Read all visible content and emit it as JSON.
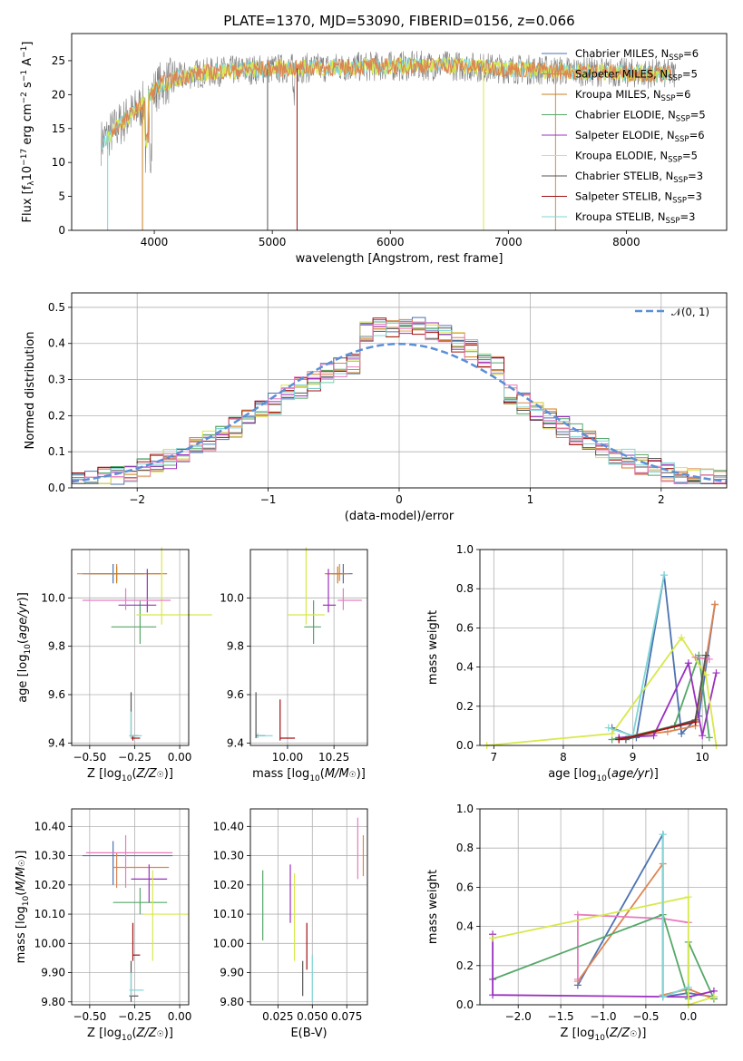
{
  "figure": {
    "title": "PLATE=1370, MJD=53090, FIBERID=0156, z=0.066"
  },
  "colors": {
    "blue": "#4c72b0",
    "orange": "#dd8452",
    "darkorange": "#cc7f20",
    "green": "#55a868",
    "purple": "#9b30c0",
    "yellow": "#d8e84a",
    "darkgray": "#555555",
    "darkred": "#a01010",
    "cyan": "#7fd6d6",
    "pink": "#e87cc0",
    "dashed": "#5b8fd6",
    "grid": "#b0b0b0"
  },
  "legend": {
    "models": [
      {
        "label": "Chabrier MILES, N",
        "sub": "SSP",
        "suffix": "=6",
        "color": "#4c72b0"
      },
      {
        "label": "Salpeter MILES, N",
        "sub": "SSP",
        "suffix": "=5",
        "color": "#dd8452"
      },
      {
        "label": "Kroupa MILES, N",
        "sub": "SSP",
        "suffix": "=6",
        "color": "#cc7f20"
      },
      {
        "label": "Chabrier ELODIE, N",
        "sub": "SSP",
        "suffix": "=5",
        "color": "#55a868"
      },
      {
        "label": "Salpeter ELODIE, N",
        "sub": "SSP",
        "suffix": "=6",
        "color": "#9b30c0"
      },
      {
        "label": "Kroupa ELODIE, N",
        "sub": "SSP",
        "suffix": "=5",
        "color": "#d8e84a"
      },
      {
        "label": "Chabrier STELIB, N",
        "sub": "SSP",
        "suffix": "=3",
        "color": "#555555"
      },
      {
        "label": "Salpeter STELIB, N",
        "sub": "SSP",
        "suffix": "=3",
        "color": "#a01010"
      },
      {
        "label": "Kroupa STELIB, N",
        "sub": "SSP",
        "suffix": "=3",
        "color": "#7fd6d6"
      }
    ],
    "normal_label": "𝒩(0, 1)"
  },
  "chart_data": [
    {
      "id": "spectrum",
      "type": "line",
      "xlabel": "wavelength [Angstrom, rest frame]",
      "ylabel": "Flux [f_λ10^-17 erg cm^-2 s^-1 A^-1]",
      "xlim": [
        3300,
        8850
      ],
      "ylim": [
        0,
        29
      ],
      "xticks": [
        4000,
        5000,
        6000,
        7000,
        8000
      ],
      "yticks": [
        0,
        5,
        10,
        15,
        20,
        25
      ],
      "continuum": {
        "x": [
          3550,
          3700,
          3900,
          4050,
          4300,
          4600,
          5000,
          5500,
          6000,
          6500,
          7000,
          7500,
          8000,
          8400
        ],
        "y": [
          13,
          15.5,
          18.5,
          21.5,
          23,
          23.5,
          23.8,
          24,
          24.2,
          24.3,
          23.8,
          23.5,
          23.2,
          23.0
        ]
      },
      "grid": false
    },
    {
      "id": "residuals",
      "type": "histogram",
      "xlabel": "(data-model)/error",
      "ylabel": "Normed distribution",
      "xlim": [
        -2.5,
        2.5
      ],
      "ylim": [
        0,
        0.54
      ],
      "xticks": [
        -2,
        -1,
        0,
        1,
        2
      ],
      "yticks": [
        0.0,
        0.1,
        0.2,
        0.3,
        0.4,
        0.5
      ],
      "bin_width": 0.1,
      "series_base": [
        0.02,
        0.025,
        0.03,
        0.035,
        0.04,
        0.05,
        0.055,
        0.065,
        0.075,
        0.085,
        0.1,
        0.11,
        0.125,
        0.14,
        0.16,
        0.18,
        0.2,
        0.21,
        0.23,
        0.26,
        0.3,
        0.31,
        0.33,
        0.35,
        0.37,
        0.38,
        0.39,
        0.4,
        0.41,
        0.43,
        0.44,
        0.45,
        0.46,
        0.47,
        0.46,
        0.44,
        0.42,
        0.4,
        0.36,
        0.33,
        0.3,
        0.27,
        0.22,
        0.2,
        0.16,
        0.14,
        0.12,
        0.1,
        0.09,
        0.08
      ],
      "grid": true
    },
    {
      "id": "age_vs_Z",
      "type": "errorbar",
      "xlabel": "Z [log10(Z/Z☉)]",
      "ylabel": "age  [log10(age/yr)]",
      "xlim": [
        -0.6,
        0.05
      ],
      "ylim": [
        9.39,
        10.2
      ],
      "xticks": [
        -0.5,
        -0.25,
        0.0
      ],
      "xtick_labels": [
        "−0.50",
        "−0.25",
        "0.00"
      ],
      "yticks": [
        9.4,
        9.6,
        9.8,
        10.0
      ],
      "points": [
        {
          "x": -0.37,
          "xerr": [
            0.17,
            0.17
          ],
          "y": 10.1,
          "yerr": [
            0.04,
            0.04
          ],
          "color": "#4c72b0"
        },
        {
          "x": -0.35,
          "xerr": [
            0.22,
            0.25
          ],
          "y": 10.1,
          "yerr": [
            0.03,
            0.04
          ],
          "color": "#dd8452"
        },
        {
          "x": -0.35,
          "xerr": [
            0.15,
            0.28
          ],
          "y": 10.1,
          "yerr": [
            0.04,
            0.03
          ],
          "color": "#cc7f20"
        },
        {
          "x": -0.22,
          "xerr": [
            0.16,
            0.09
          ],
          "y": 9.88,
          "yerr": [
            0.07,
            0.11
          ],
          "color": "#55a868"
        },
        {
          "x": -0.18,
          "xerr": [
            0.16,
            0.05
          ],
          "y": 9.97,
          "yerr": [
            0.03,
            0.15
          ],
          "color": "#9b30c0"
        },
        {
          "x": -0.1,
          "xerr": [
            0.14,
            0.28
          ],
          "y": 9.93,
          "yerr": [
            0.04,
            0.28
          ],
          "color": "#d8e84a"
        },
        {
          "x": -0.27,
          "xerr": [
            0.01,
            0.04
          ],
          "y": 9.43,
          "yerr": [
            0.01,
            0.18
          ],
          "color": "#555555"
        },
        {
          "x": -0.26,
          "xerr": [
            0.01,
            0.04
          ],
          "y": 9.42,
          "yerr": [
            0.01,
            0.01
          ],
          "color": "#a01010"
        },
        {
          "x": -0.27,
          "xerr": [
            0.01,
            0.06
          ],
          "y": 9.43,
          "yerr": [
            0.01,
            0.1
          ],
          "color": "#7fd6d6"
        },
        {
          "x": -0.3,
          "xerr": [
            0.24,
            0.25
          ],
          "y": 9.99,
          "yerr": [
            0.04,
            0.05
          ],
          "color": "#e87cc0"
        }
      ],
      "grid": true
    },
    {
      "id": "age_vs_mass",
      "type": "errorbar",
      "xlabel": "mass [log10(M/M☉)]",
      "ylabel": "",
      "xlim": [
        9.8,
        10.43
      ],
      "ylim": [
        9.39,
        10.2
      ],
      "xticks": [
        10.0,
        10.25
      ],
      "xtick_labels": [
        "10.00",
        "10.25"
      ],
      "yticks": [
        9.4,
        9.6,
        9.8,
        10.0
      ],
      "points": [
        {
          "x": 10.3,
          "xerr": [
            0.06,
            0.05
          ],
          "y": 10.1,
          "yerr": [
            0.04,
            0.04
          ],
          "color": "#4c72b0"
        },
        {
          "x": 10.28,
          "xerr": [
            0.07,
            0.05
          ],
          "y": 10.1,
          "yerr": [
            0.03,
            0.04
          ],
          "color": "#dd8452"
        },
        {
          "x": 10.27,
          "xerr": [
            0.07,
            0.04
          ],
          "y": 10.1,
          "yerr": [
            0.04,
            0.03
          ],
          "color": "#cc7f20"
        },
        {
          "x": 10.14,
          "xerr": [
            0.05,
            0.04
          ],
          "y": 9.88,
          "yerr": [
            0.07,
            0.11
          ],
          "color": "#55a868"
        },
        {
          "x": 10.22,
          "xerr": [
            0.03,
            0.04
          ],
          "y": 9.97,
          "yerr": [
            0.03,
            0.15
          ],
          "color": "#9b30c0"
        },
        {
          "x": 10.1,
          "xerr": [
            0.1,
            0.1
          ],
          "y": 9.93,
          "yerr": [
            0.04,
            0.28
          ],
          "color": "#d8e84a"
        },
        {
          "x": 9.83,
          "xerr": [
            0.0,
            0.05
          ],
          "y": 9.43,
          "yerr": [
            0.01,
            0.18
          ],
          "color": "#555555"
        },
        {
          "x": 9.96,
          "xerr": [
            0.0,
            0.08
          ],
          "y": 9.42,
          "yerr": [
            0.01,
            0.16
          ],
          "color": "#a01010"
        },
        {
          "x": 9.84,
          "xerr": [
            0.0,
            0.08
          ],
          "y": 9.43,
          "yerr": [
            0.01,
            0.01
          ],
          "color": "#7fd6d6"
        },
        {
          "x": 10.3,
          "xerr": [
            0.03,
            0.1
          ],
          "y": 9.99,
          "yerr": [
            0.04,
            0.05
          ],
          "color": "#e87cc0"
        }
      ],
      "grid": true
    },
    {
      "id": "weight_vs_age",
      "type": "line",
      "xlabel": "age  [log10(age/yr)]",
      "ylabel": "mass weight",
      "xlim": [
        6.8,
        10.35
      ],
      "ylim": [
        0,
        1.0
      ],
      "xticks": [
        7,
        8,
        9,
        10
      ],
      "yticks": [
        0.0,
        0.2,
        0.4,
        0.6,
        0.8,
        1.0
      ],
      "series": [
        {
          "color": "#4c72b0",
          "x": [
            8.7,
            9.05,
            9.45,
            9.7,
            9.95,
            10.18
          ],
          "y": [
            0.09,
            0.04,
            0.87,
            0.06,
            0.15,
            0.72
          ]
        },
        {
          "color": "#dd8452",
          "x": [
            8.8,
            9.0,
            9.5,
            9.9,
            10.18
          ],
          "y": [
            0.03,
            0.05,
            0.07,
            0.1,
            0.72
          ]
        },
        {
          "color": "#55a868",
          "x": [
            8.7,
            9.0,
            9.6,
            9.95,
            10.1
          ],
          "y": [
            0.03,
            0.05,
            0.1,
            0.46,
            0.04
          ]
        },
        {
          "color": "#9b30c0",
          "x": [
            8.8,
            9.3,
            9.8,
            10.0,
            10.2
          ],
          "y": [
            0.04,
            0.05,
            0.42,
            0.05,
            0.37
          ]
        },
        {
          "color": "#d8e84a",
          "x": [
            6.9,
            8.7,
            9.7,
            10.05,
            10.2
          ],
          "y": [
            0.0,
            0.06,
            0.55,
            0.36,
            0.0
          ]
        },
        {
          "color": "#7fd6d6",
          "x": [
            8.65,
            9.0,
            9.45
          ],
          "y": [
            0.09,
            0.05,
            0.87
          ]
        },
        {
          "color": "#e87cc0",
          "x": [
            9.9,
            10.1
          ],
          "y": [
            0.45,
            0.44
          ]
        },
        {
          "color": "#555555",
          "x": [
            8.9,
            9.9,
            10.05
          ],
          "y": [
            0.03,
            0.13,
            0.46
          ]
        },
        {
          "color": "#a01010",
          "x": [
            8.8,
            9.9
          ],
          "y": [
            0.03,
            0.12
          ]
        }
      ],
      "grid": true
    },
    {
      "id": "mass_vs_Z",
      "type": "errorbar",
      "xlabel": "Z [log10(Z/Z☉)]",
      "ylabel": "mass [log10(M/M☉)]",
      "xlim": [
        -0.6,
        0.05
      ],
      "ylim": [
        9.79,
        10.46
      ],
      "xticks": [
        -0.5,
        -0.25,
        0.0
      ],
      "xtick_labels": [
        "−0.50",
        "−0.25",
        "0.00"
      ],
      "yticks": [
        9.8,
        9.9,
        10.0,
        10.1,
        10.2,
        10.3,
        10.4
      ],
      "points": [
        {
          "x": -0.37,
          "xerr": [
            0.17,
            0.33
          ],
          "y": 10.3,
          "yerr": [
            0.1,
            0.05
          ],
          "color": "#4c72b0"
        },
        {
          "x": -0.35,
          "xerr": [
            0.02,
            0.29
          ],
          "y": 10.26,
          "yerr": [
            0.07,
            0.05
          ],
          "color": "#dd8452"
        },
        {
          "x": -0.3,
          "xerr": [
            0.22,
            0.26
          ],
          "y": 10.31,
          "yerr": [
            0.12,
            0.06
          ],
          "color": "#e87cc0"
        },
        {
          "x": -0.22,
          "xerr": [
            0.15,
            0.15
          ],
          "y": 10.14,
          "yerr": [
            0.04,
            0.05
          ],
          "color": "#55a868"
        },
        {
          "x": -0.17,
          "xerr": [
            0.1,
            0.1
          ],
          "y": 10.22,
          "yerr": [
            0.08,
            0.05
          ],
          "color": "#9b30c0"
        },
        {
          "x": -0.15,
          "xerr": [
            0.05,
            0.2
          ],
          "y": 10.1,
          "yerr": [
            0.16,
            0.15
          ],
          "color": "#d8e84a"
        },
        {
          "x": -0.26,
          "xerr": [
            0.0,
            0.04
          ],
          "y": 9.96,
          "yerr": [
            0.02,
            0.11
          ],
          "color": "#a01010"
        },
        {
          "x": -0.27,
          "xerr": [
            0.01,
            0.04
          ],
          "y": 9.82,
          "yerr": [
            0.02,
            0.12
          ],
          "color": "#555555"
        },
        {
          "x": -0.27,
          "xerr": [
            0.01,
            0.07
          ],
          "y": 9.84,
          "yerr": [
            0.02,
            0.06
          ],
          "color": "#7fd6d6"
        }
      ],
      "grid": true
    },
    {
      "id": "mass_vs_ebv",
      "type": "errorbar",
      "xlabel": "E(B-V)",
      "ylabel": "",
      "xlim": [
        0.005,
        0.09
      ],
      "ylim": [
        9.79,
        10.46
      ],
      "xticks": [
        0.025,
        0.05,
        0.075
      ],
      "xtick_labels": [
        "0.025",
        "0.050",
        "0.075"
      ],
      "yticks": [
        9.8,
        9.9,
        10.0,
        10.1,
        10.2,
        10.3,
        10.4
      ],
      "points": [
        {
          "x": 0.014,
          "y": 10.13,
          "yerr": [
            0.12,
            0.12
          ],
          "color": "#55a868"
        },
        {
          "x": 0.034,
          "y": 10.17,
          "yerr": [
            0.1,
            0.1
          ],
          "color": "#9b30c0"
        },
        {
          "x": 0.037,
          "y": 10.1,
          "yerr": [
            0.16,
            0.14
          ],
          "color": "#d8e84a"
        },
        {
          "x": 0.046,
          "y": 9.99,
          "yerr": [
            0.08,
            0.08
          ],
          "color": "#a01010"
        },
        {
          "x": 0.043,
          "y": 9.88,
          "yerr": [
            0.06,
            0.06
          ],
          "color": "#555555"
        },
        {
          "x": 0.05,
          "y": 9.88,
          "yerr": [
            0.08,
            0.08
          ],
          "color": "#7fd6d6"
        },
        {
          "x": 0.083,
          "y": 10.33,
          "yerr": [
            0.11,
            0.1
          ],
          "color": "#e87cc0"
        },
        {
          "x": 0.087,
          "y": 10.3,
          "yerr": [
            0.07,
            0.07
          ],
          "color": "#dd8452"
        }
      ],
      "grid": true
    },
    {
      "id": "weight_vs_Z",
      "type": "line",
      "xlabel": "Z [log10(Z/Z☉)]",
      "ylabel": "mass weight",
      "xlim": [
        -2.45,
        0.45
      ],
      "ylim": [
        0,
        1.0
      ],
      "xticks": [
        -2.0,
        -1.5,
        -1.0,
        -0.5,
        0.0
      ],
      "xtick_labels": [
        "−2.0",
        "−1.5",
        "−1.0",
        "−0.5",
        "0.0"
      ],
      "yticks": [
        0.0,
        0.2,
        0.4,
        0.6,
        0.8,
        1.0
      ],
      "series": [
        {
          "color": "#4c72b0",
          "x": [
            -1.3,
            -0.3,
            -0.3,
            0.0,
            0.3
          ],
          "y": [
            0.1,
            0.87,
            0.04,
            0.06,
            0.04
          ]
        },
        {
          "color": "#dd8452",
          "x": [
            -1.3,
            -0.3,
            -0.3,
            0.0,
            0.3
          ],
          "y": [
            0.12,
            0.72,
            0.05,
            0.08,
            0.03
          ]
        },
        {
          "color": "#e87cc0",
          "x": [
            -1.3,
            -1.3,
            -0.3,
            0.0
          ],
          "y": [
            0.13,
            0.46,
            0.44,
            0.42
          ]
        },
        {
          "color": "#55a868",
          "x": [
            -2.3,
            -0.3,
            0.0,
            0.0,
            0.3
          ],
          "y": [
            0.13,
            0.46,
            0.03,
            0.32,
            0.03
          ]
        },
        {
          "color": "#9b30c0",
          "x": [
            -2.3,
            -2.3,
            -2.3,
            0.0,
            0.3
          ],
          "y": [
            0.36,
            0.13,
            0.05,
            0.04,
            0.07
          ]
        },
        {
          "color": "#d8e84a",
          "x": [
            -2.3,
            0.0,
            0.0,
            0.3
          ],
          "y": [
            0.34,
            0.55,
            0.0,
            0.04
          ]
        },
        {
          "color": "#7fd6d6",
          "x": [
            -0.3,
            -0.3,
            0.0
          ],
          "y": [
            0.87,
            0.04,
            0.09
          ]
        }
      ],
      "grid": true
    }
  ]
}
